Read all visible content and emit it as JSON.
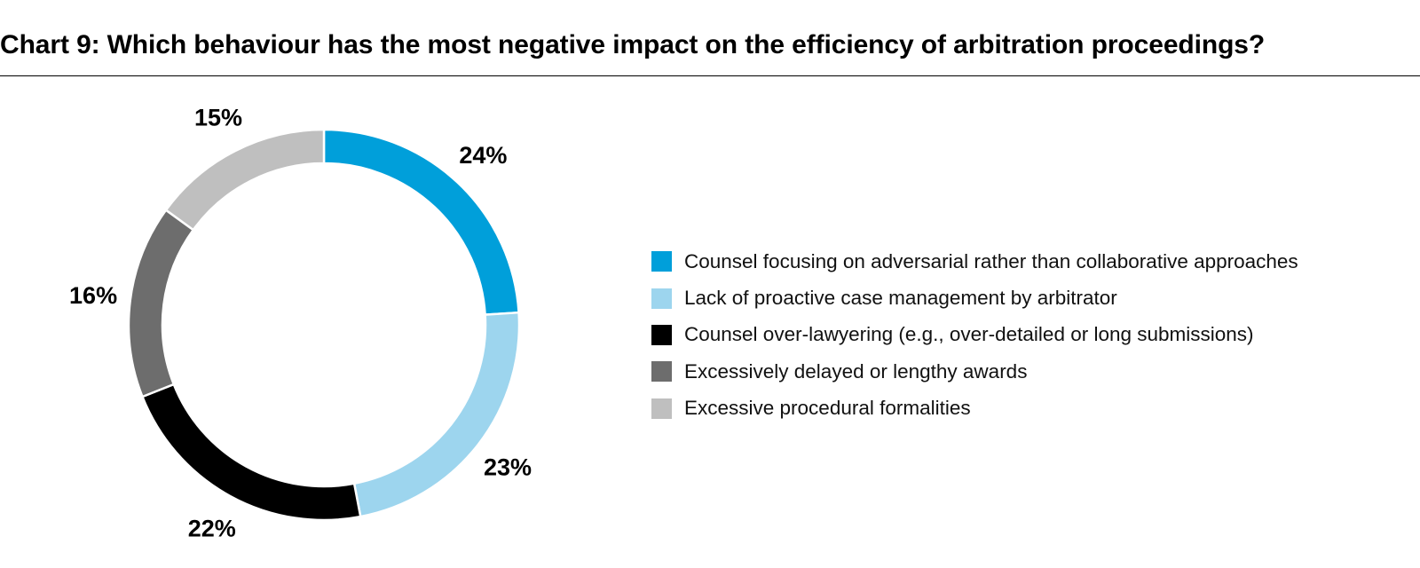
{
  "title": {
    "prefix": "Chart 9:",
    "text": "Which behaviour has the most negative impact on the efficiency of arbitration proceedings?"
  },
  "chart_data": {
    "type": "pie",
    "variant": "donut",
    "title": "Which behaviour has the most negative impact on the efficiency of arbitration proceedings?",
    "unit": "%",
    "legend_position": "right",
    "categories": [
      "Counsel focusing on adversarial rather than collaborative approaches",
      "Lack of proactive case management by arbitrator",
      "Counsel over-lawyering (e.g., over-detailed or long submissions)",
      "Excessively delayed or lengthy awards",
      "Excessive procedural formalities"
    ],
    "values": [
      24,
      23,
      22,
      16,
      15
    ],
    "labels": [
      "24%",
      "23%",
      "22%",
      "16%",
      "15%"
    ],
    "colors": [
      "#009fda",
      "#9dd5ee",
      "#000000",
      "#6d6d6d",
      "#bfbfbf"
    ]
  }
}
